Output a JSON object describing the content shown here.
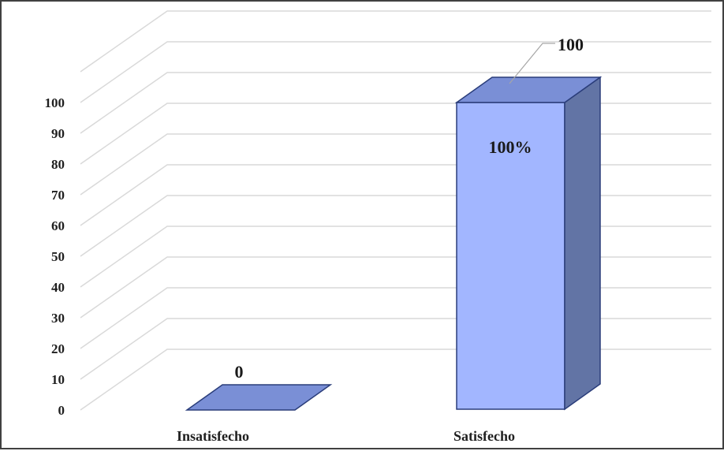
{
  "chart_data": {
    "type": "bar",
    "categories": [
      "Insatisfecho",
      "Satisfecho"
    ],
    "values": [
      0,
      100
    ],
    "data_labels": [
      "0",
      "100%"
    ],
    "callout_labels": [
      "",
      "100"
    ],
    "ylim": [
      0,
      100
    ],
    "yticks": [
      0,
      10,
      20,
      30,
      40,
      50,
      60,
      70,
      80,
      90,
      100
    ],
    "title": "",
    "xlabel": "",
    "ylabel": "",
    "grid": true,
    "style": "3d",
    "colors": {
      "front": "#a2b6ff",
      "top": "#7a8fd6",
      "side": "#6274a5",
      "edge": "#2a3d7a",
      "grid": "#d9d9d9"
    }
  }
}
